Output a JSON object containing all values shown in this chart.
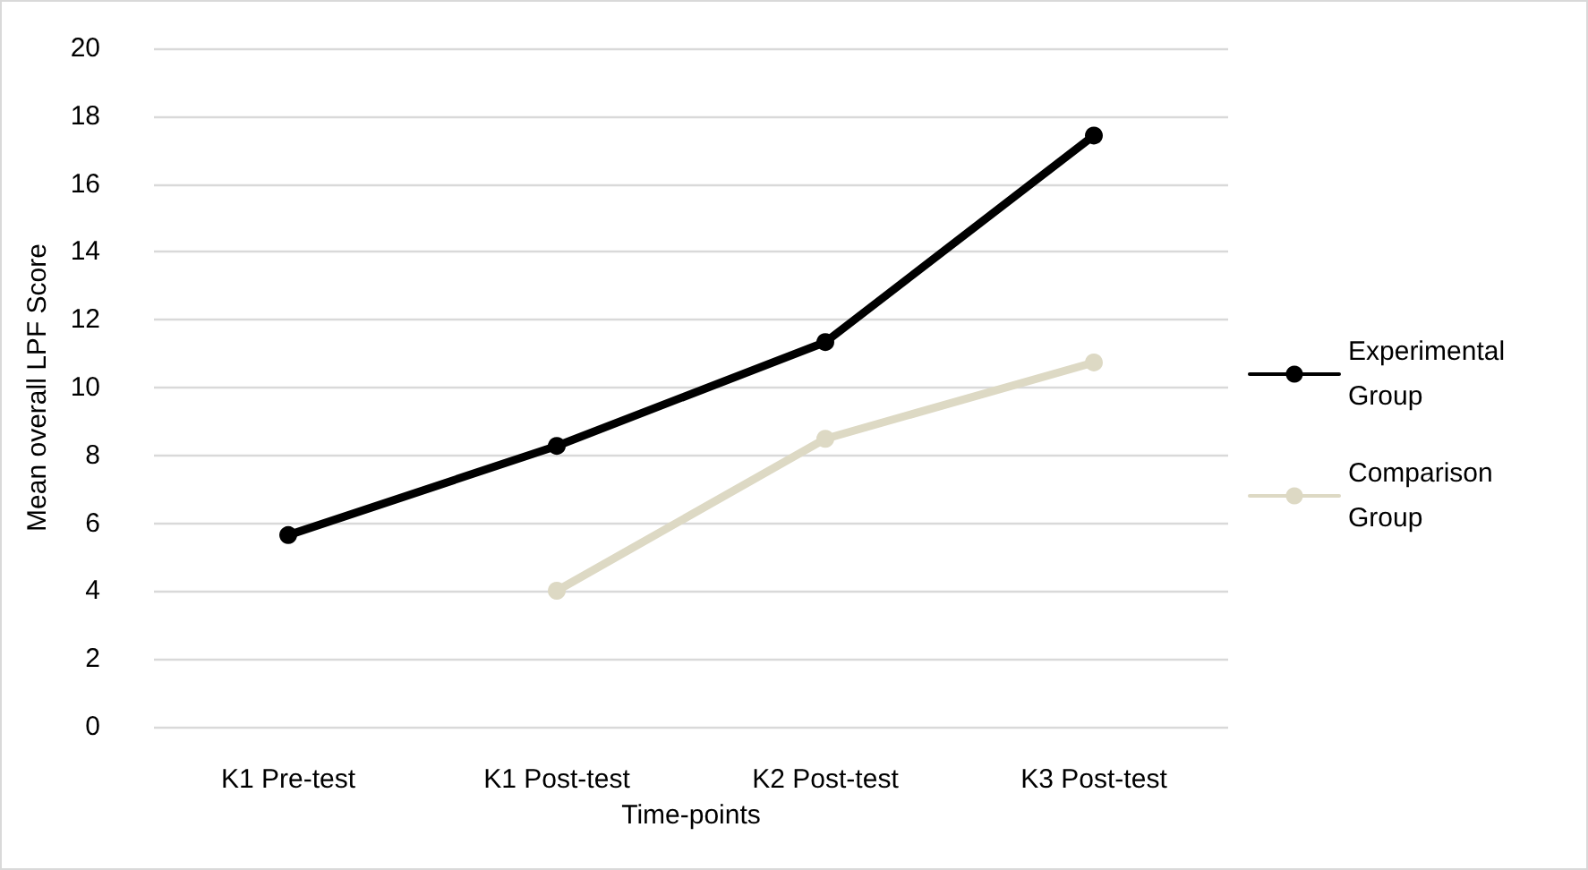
{
  "chart_data": {
    "type": "line",
    "xlabel": "Time-points",
    "ylabel": "Mean overall LPF Score",
    "categories": [
      "K1 Pre-test",
      "K1 Post-test",
      "K2 Post-test",
      "K3 Post-test"
    ],
    "series": [
      {
        "name": "Experimental Group",
        "color": "#000000",
        "values": [
          5.65,
          8.28,
          11.34,
          17.43
        ]
      },
      {
        "name": "Comparison Group",
        "color": "#ddd9c4",
        "values": [
          null,
          4.01,
          8.49,
          10.74
        ]
      }
    ],
    "ylim": [
      0,
      20
    ],
    "yticks": [
      0,
      2,
      4,
      6,
      8,
      10,
      12,
      14,
      16,
      18,
      20
    ],
    "grid": "y",
    "legend": "right",
    "marker": "circle",
    "line_style": "solid"
  }
}
